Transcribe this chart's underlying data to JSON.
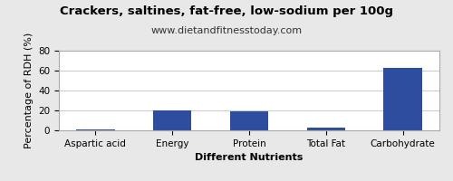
{
  "title": "Crackers, saltines, fat-free, low-sodium per 100g",
  "subtitle": "www.dietandfitnesstoday.com",
  "categories": [
    "Aspartic acid",
    "Energy",
    "Protein",
    "Total Fat",
    "Carbohydrate"
  ],
  "values": [
    0.5,
    20,
    19.5,
    2.5,
    63
  ],
  "bar_color": "#2e4d9e",
  "xlabel": "Different Nutrients",
  "ylabel": "Percentage of RDH (%)",
  "ylim": [
    0,
    80
  ],
  "yticks": [
    0,
    20,
    40,
    60,
    80
  ],
  "background_color": "#e8e8e8",
  "plot_background": "#ffffff",
  "title_fontsize": 9.5,
  "subtitle_fontsize": 8,
  "label_fontsize": 8,
  "tick_fontsize": 7.5
}
